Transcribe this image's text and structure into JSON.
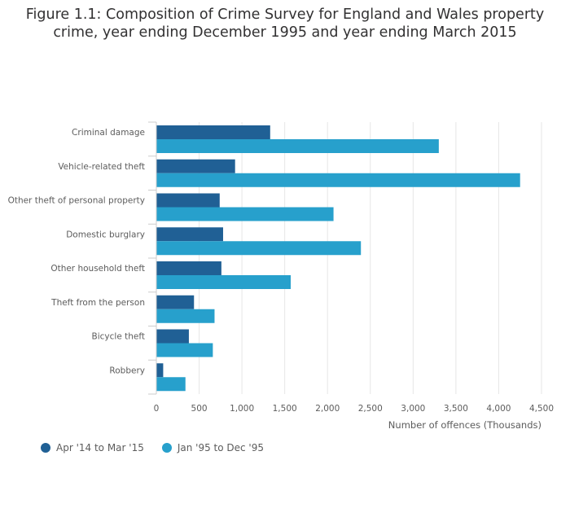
{
  "chart_data": {
    "type": "bar",
    "orientation": "horizontal",
    "title": "Figure 1.1: Composition of Crime Survey for England and Wales property crime, year ending December 1995 and year ending March 2015",
    "title_lines": [
      "Figure 1.1: Composition of Crime Survey for England and Wales property",
      "crime, year ending December 1995 and year ending March 2015"
    ],
    "categories": [
      "Criminal damage",
      "Vehicle-related theft",
      "Other theft of personal property",
      "Domestic burglary",
      "Other household theft",
      "Theft from the person",
      "Bicycle theft",
      "Robbery"
    ],
    "series": [
      {
        "name": "Apr '14 to Mar '15",
        "color": "#206095",
        "values": [
          1330,
          920,
          740,
          780,
          760,
          440,
          380,
          80
        ]
      },
      {
        "name": "Jan '95 to Dec '95",
        "color": "#27a0cc",
        "values": [
          3300,
          4250,
          2070,
          2390,
          1570,
          680,
          660,
          340
        ]
      }
    ],
    "xlabel": "Number of offences (Thousands)",
    "ylabel": "",
    "xlim": [
      0,
      4500
    ],
    "ticks": [
      0,
      500,
      1000,
      1500,
      2000,
      2500,
      3000,
      3500,
      4000,
      4500
    ],
    "tick_labels": [
      "0",
      "500",
      "1,000",
      "1,500",
      "2,000",
      "2,500",
      "3,000",
      "3,500",
      "4,000",
      "4,500"
    ],
    "grid": true,
    "legend_position": "bottom-left"
  }
}
